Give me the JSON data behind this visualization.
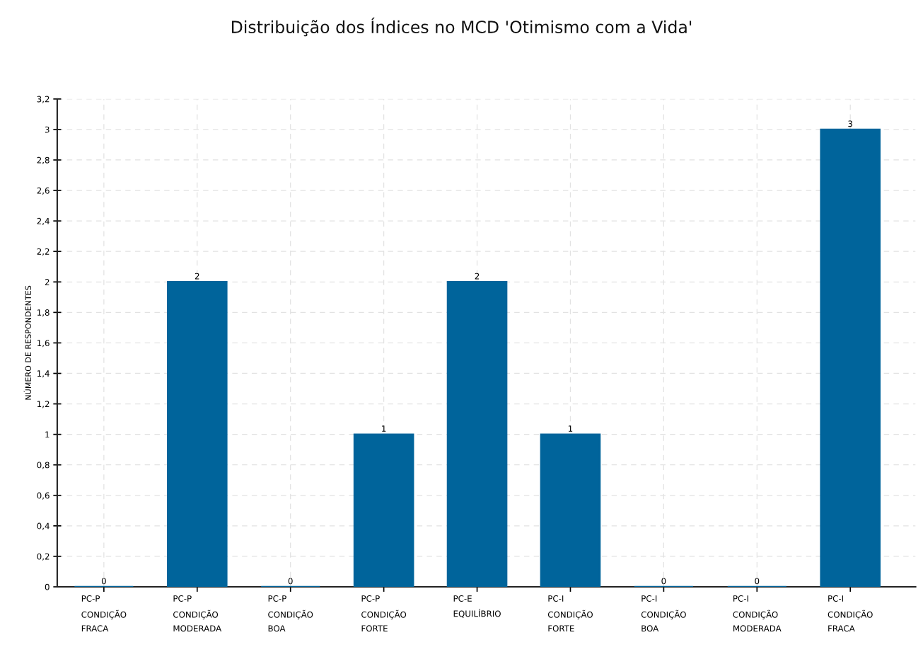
{
  "chart_data": {
    "type": "bar",
    "title": "Distribuição dos Índices no MCD 'Otimismo com a Vida'",
    "ylabel": "NÚMERO DE RESPONDENTES",
    "categories": [
      "PC-P\nCONDIÇÃO\nFRACA",
      "PC-P\nCONDIÇÃO\nMODERADA",
      "PC-P\nCONDIÇÃO\nBOA",
      "PC-P\nCONDIÇÃO\nFORTE",
      "PC-E\nEQUILÍBRIO",
      "PC-I\nCONDIÇÃO\nFORTE",
      "PC-I\nCONDIÇÃO\nBOA",
      "PC-I\nCONDIÇÃO\nMODERADA",
      "PC-I\nCONDIÇÃO\nFRACA"
    ],
    "values": [
      0,
      2,
      0,
      1,
      2,
      1,
      0,
      0,
      3
    ],
    "color": "#00649b",
    "ylim": [
      0,
      3.2
    ],
    "yticks": [
      0,
      {
        "value": 0.2,
        "label": "0,2"
      },
      {
        "value": 0.4,
        "label": "0,4"
      },
      {
        "value": 0.6,
        "label": "0,6"
      },
      {
        "value": 0.8,
        "label": "0,8"
      },
      1,
      {
        "value": 1.2,
        "label": "1,2"
      },
      {
        "value": 1.4,
        "label": "1,4"
      },
      {
        "value": 1.6,
        "label": "1,6"
      },
      {
        "value": 1.8,
        "label": "1,8"
      },
      2,
      {
        "value": 2.2,
        "label": "2,2"
      },
      {
        "value": 2.4,
        "label": "2,4"
      },
      {
        "value": 2.6,
        "label": "2,6"
      },
      {
        "value": 2.8,
        "label": "2,8"
      },
      3,
      {
        "value": 3.2,
        "label": "3,2"
      }
    ],
    "grid": true,
    "data_labels": true,
    "legend": false
  }
}
